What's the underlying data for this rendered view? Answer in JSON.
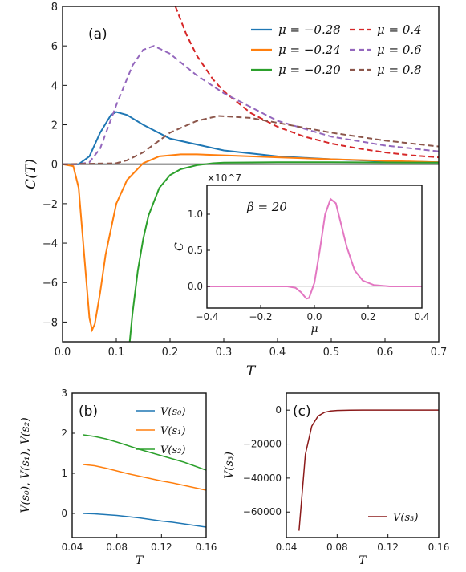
{
  "chart_data": [
    {
      "type": "line",
      "panel": "(a)",
      "xlabel": "T",
      "ylabel": "C(T)",
      "xlim": [
        0.0,
        0.7
      ],
      "ylim": [
        -9,
        8
      ],
      "xticks": [
        "0.0",
        "0.1",
        "0.2",
        "0.3",
        "0.4",
        "0.5",
        "0.6",
        "0.7"
      ],
      "yticks": [
        "−8",
        "−6",
        "−4",
        "−2",
        "0",
        "2",
        "4",
        "6",
        "8"
      ],
      "legend_placement": "top-right",
      "series": [
        {
          "name": "μ = −0.28",
          "color": "#1f77b4",
          "dash": "solid",
          "x": [
            0.0,
            0.03,
            0.05,
            0.07,
            0.09,
            0.1,
            0.12,
            0.15,
            0.2,
            0.3,
            0.4,
            0.5,
            0.6,
            0.7
          ],
          "y": [
            0,
            0,
            0.4,
            1.6,
            2.5,
            2.65,
            2.5,
            2.0,
            1.3,
            0.7,
            0.4,
            0.25,
            0.15,
            0.1
          ]
        },
        {
          "name": "μ = −0.24",
          "color": "#ff7f0e",
          "dash": "solid",
          "x": [
            0.0,
            0.02,
            0.03,
            0.04,
            0.05,
            0.055,
            0.06,
            0.07,
            0.08,
            0.1,
            0.12,
            0.15,
            0.18,
            0.22,
            0.25,
            0.3,
            0.4,
            0.5,
            0.7
          ],
          "y": [
            0,
            -0.1,
            -1.2,
            -4.5,
            -7.8,
            -8.4,
            -8.1,
            -6.5,
            -4.6,
            -2.0,
            -0.8,
            0.05,
            0.4,
            0.5,
            0.5,
            0.45,
            0.35,
            0.25,
            0.1
          ]
        },
        {
          "name": "μ = −0.20",
          "color": "#2ca02c",
          "dash": "solid",
          "x": [
            0.125,
            0.13,
            0.14,
            0.15,
            0.16,
            0.18,
            0.2,
            0.22,
            0.25,
            0.28,
            0.3,
            0.4,
            0.5,
            0.7
          ],
          "y": [
            -9,
            -7.6,
            -5.4,
            -3.8,
            -2.6,
            -1.2,
            -0.55,
            -0.25,
            -0.05,
            0.05,
            0.08,
            0.1,
            0.1,
            0.08
          ]
        },
        {
          "name": "μ = 0.4",
          "color": "#d62728",
          "dash": "dashed",
          "x": [
            0.21,
            0.23,
            0.25,
            0.28,
            0.3,
            0.35,
            0.4,
            0.45,
            0.5,
            0.55,
            0.6,
            0.65,
            0.7
          ],
          "y": [
            8,
            6.6,
            5.5,
            4.3,
            3.7,
            2.6,
            1.9,
            1.4,
            1.05,
            0.8,
            0.6,
            0.45,
            0.35
          ]
        },
        {
          "name": "μ = 0.6",
          "color": "#9467bd",
          "dash": "dashed",
          "x": [
            0.0,
            0.03,
            0.05,
            0.07,
            0.1,
            0.13,
            0.15,
            0.17,
            0.2,
            0.25,
            0.3,
            0.4,
            0.5,
            0.6,
            0.7
          ],
          "y": [
            0,
            0,
            0.1,
            0.8,
            3.0,
            5.0,
            5.8,
            6.0,
            5.6,
            4.5,
            3.6,
            2.2,
            1.4,
            0.95,
            0.65
          ]
        },
        {
          "name": "μ = 0.8",
          "color": "#8c564b",
          "dash": "dashed",
          "x": [
            0.0,
            0.1,
            0.12,
            0.15,
            0.18,
            0.2,
            0.25,
            0.29,
            0.35,
            0.4,
            0.5,
            0.6,
            0.7
          ],
          "y": [
            0,
            0.05,
            0.2,
            0.6,
            1.2,
            1.6,
            2.2,
            2.45,
            2.35,
            2.1,
            1.6,
            1.2,
            0.9
          ]
        }
      ],
      "inset": {
        "type": "line",
        "xlabel": "μ",
        "ylabel": "C",
        "annotation": "β = 20",
        "scale_label": "×10^7",
        "xlim": [
          -0.4,
          0.4
        ],
        "ylim": [
          -0.3,
          1.4
        ],
        "xticks": [
          "−0.4",
          "−0.2",
          "0.0",
          "0.2",
          "0.4"
        ],
        "yticks": [
          "0.0",
          "0.5",
          "1.0"
        ],
        "color": "#e377c2",
        "x": [
          -0.4,
          -0.1,
          -0.07,
          -0.05,
          -0.03,
          -0.02,
          0.0,
          0.02,
          0.04,
          0.06,
          0.08,
          0.1,
          0.12,
          0.15,
          0.18,
          0.22,
          0.28,
          0.4
        ],
        "y": [
          0,
          0,
          -0.02,
          -0.08,
          -0.17,
          -0.16,
          0.05,
          0.5,
          1.0,
          1.21,
          1.15,
          0.85,
          0.55,
          0.22,
          0.08,
          0.02,
          0,
          0
        ]
      }
    },
    {
      "type": "line",
      "panel": "(b)",
      "xlabel": "T",
      "ylabel": "V(s₀),  V(s₁),  V(s₂)",
      "xlim": [
        0.04,
        0.16
      ],
      "ylim": [
        -0.6,
        3
      ],
      "xticks": [
        "0.04",
        "0.08",
        "0.12",
        "0.16"
      ],
      "yticks": [
        "0",
        "1",
        "2",
        "3"
      ],
      "legend_placement": "top-right",
      "series": [
        {
          "name": "V(s₀)",
          "color": "#1f77b4",
          "x": [
            0.05,
            0.06,
            0.07,
            0.08,
            0.09,
            0.1,
            0.11,
            0.12,
            0.13,
            0.14,
            0.15,
            0.16
          ],
          "y": [
            0.0,
            -0.01,
            -0.03,
            -0.05,
            -0.08,
            -0.11,
            -0.15,
            -0.19,
            -0.22,
            -0.26,
            -0.3,
            -0.34
          ]
        },
        {
          "name": "V(s₁)",
          "color": "#ff7f0e",
          "x": [
            0.05,
            0.06,
            0.07,
            0.08,
            0.09,
            0.1,
            0.11,
            0.12,
            0.13,
            0.14,
            0.15,
            0.16
          ],
          "y": [
            1.22,
            1.19,
            1.13,
            1.06,
            0.99,
            0.93,
            0.87,
            0.81,
            0.76,
            0.7,
            0.64,
            0.58
          ]
        },
        {
          "name": "V(s₂)",
          "color": "#2ca02c",
          "x": [
            0.05,
            0.06,
            0.07,
            0.08,
            0.09,
            0.1,
            0.11,
            0.12,
            0.13,
            0.14,
            0.15,
            0.16
          ],
          "y": [
            1.96,
            1.92,
            1.86,
            1.78,
            1.69,
            1.6,
            1.52,
            1.44,
            1.36,
            1.28,
            1.18,
            1.08
          ]
        }
      ]
    },
    {
      "type": "line",
      "panel": "(c)",
      "xlabel": "T",
      "ylabel": "V(s₃)",
      "xlim": [
        0.04,
        0.16
      ],
      "ylim": [
        -75000,
        10000
      ],
      "xticks": [
        "0.04",
        "0.08",
        "0.12",
        "0.16"
      ],
      "yticks": [
        "−60000",
        "−40000",
        "−20000",
        "0"
      ],
      "legend_placement": "bottom-right",
      "series": [
        {
          "name": "V(s₃)",
          "color": "#8b1a1a",
          "x": [
            0.05,
            0.055,
            0.06,
            0.065,
            0.07,
            0.075,
            0.08,
            0.09,
            0.1,
            0.12,
            0.16
          ],
          "y": [
            -71000,
            -26000,
            -9500,
            -3500,
            -1300,
            -500,
            -200,
            -40,
            0,
            0,
            0
          ]
        }
      ]
    }
  ]
}
